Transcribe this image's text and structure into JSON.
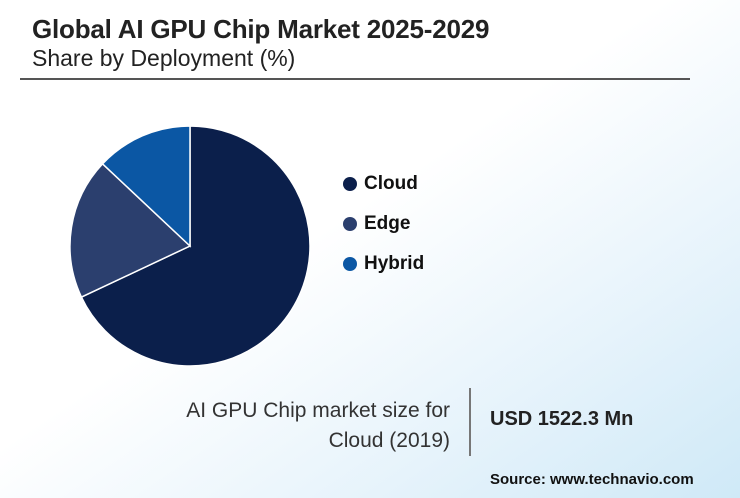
{
  "header": {
    "title": "Global AI GPU Chip Market 2025-2029",
    "subtitle": "Share by Deployment (%)"
  },
  "chart_data": {
    "type": "pie",
    "title": "Global AI GPU Chip Market 2025-2029",
    "subtitle": "Share by Deployment (%)",
    "categories": [
      "Cloud",
      "Edge",
      "Hybrid"
    ],
    "values": [
      68,
      19,
      13
    ],
    "colors": [
      "#0b1f4b",
      "#2b3f6e",
      "#0b57a4"
    ],
    "legend_placement": "right"
  },
  "callout": {
    "label": "AI GPU Chip market size for Cloud (2019)",
    "value": "USD 1522.3 Mn"
  },
  "footer": {
    "source": "Source: www.technavio.com"
  }
}
